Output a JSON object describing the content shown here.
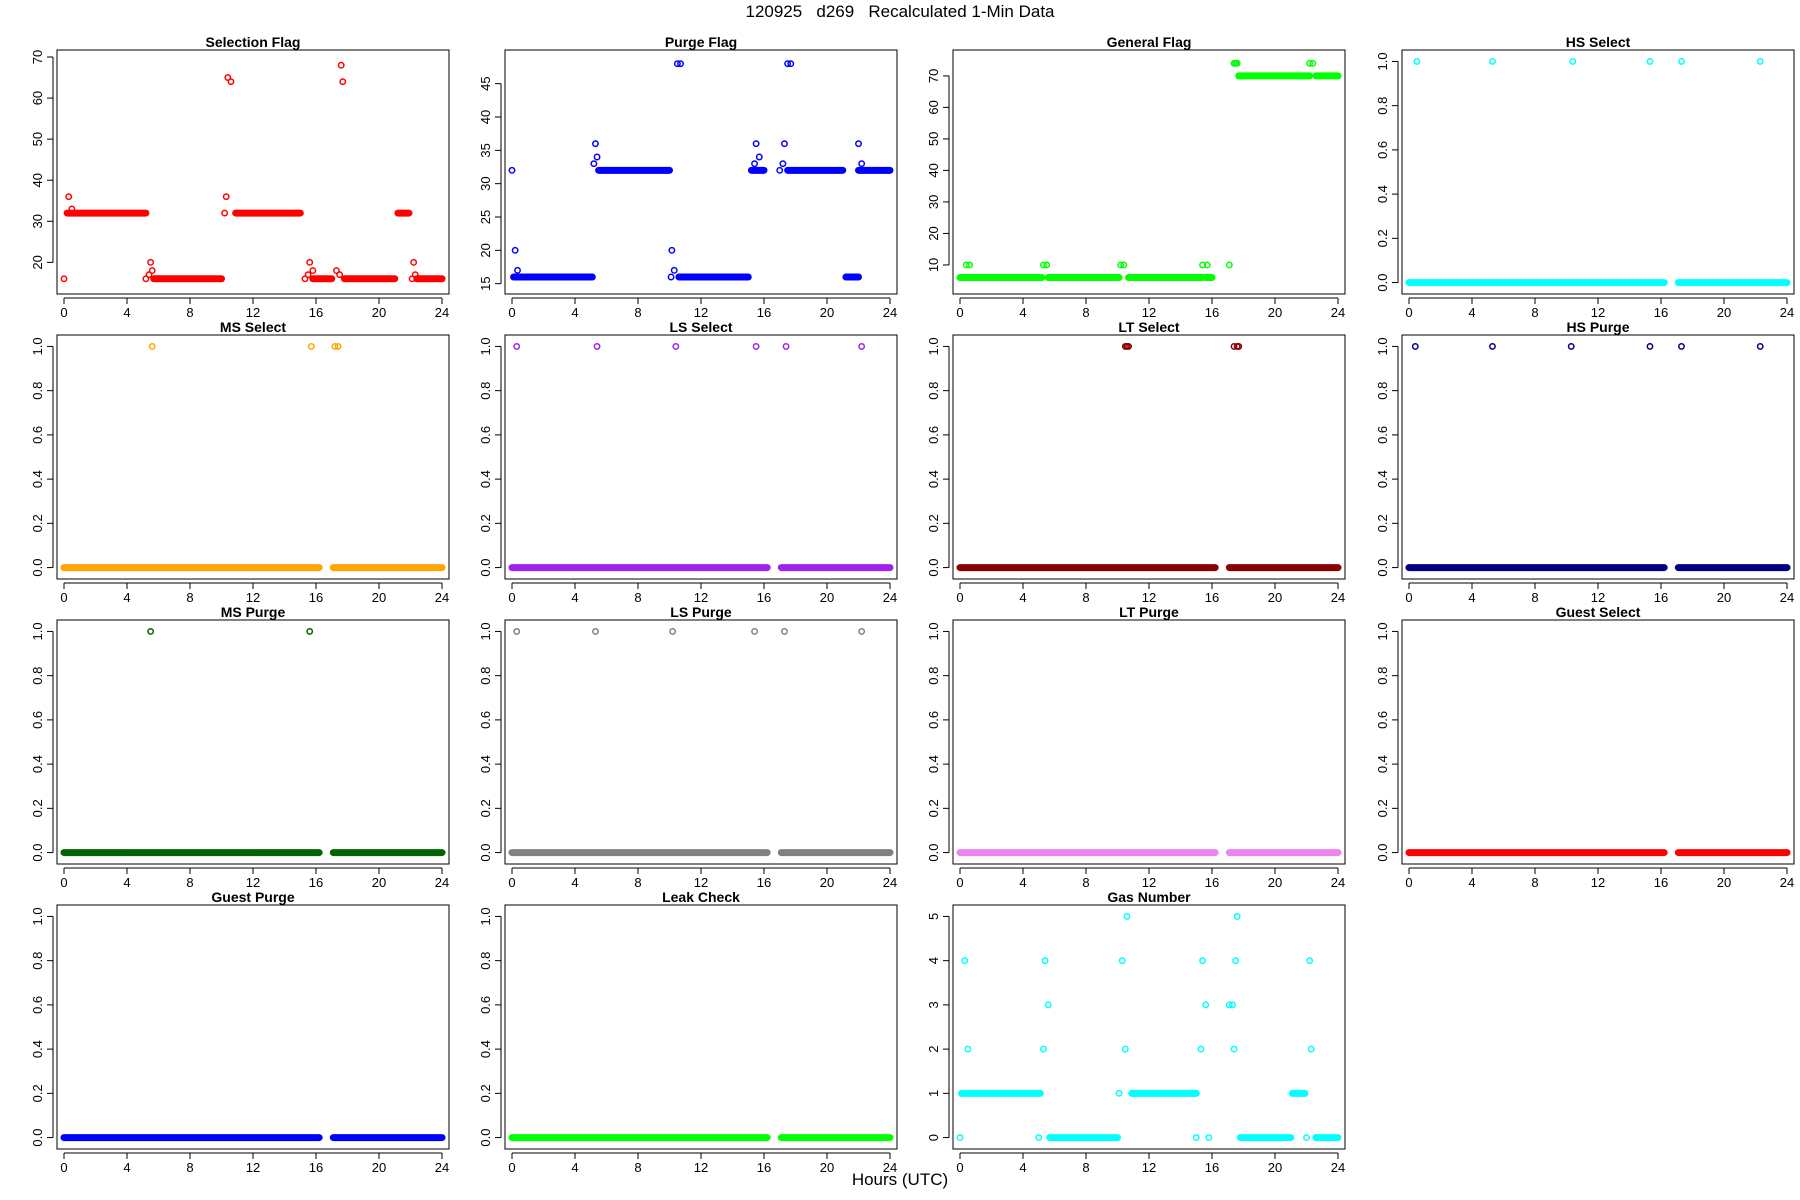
{
  "page": {
    "title": "120925   d269   Recalculated 1-Min Data",
    "xlabel": "Hours (UTC)"
  },
  "colors": {
    "red": "#ff0000",
    "blue": "#0000ff",
    "green": "#00ff00",
    "cyan": "#00ffff",
    "orange": "#ffa500",
    "purple": "#a020f0",
    "darkred": "#8b0000",
    "navy": "#000080",
    "darkgreen": "#006400",
    "gray": "#808080",
    "violet": "#ee82ee"
  },
  "chart_data": [
    {
      "type": "scatter",
      "title": "Selection Flag",
      "color": "#ff0000",
      "xlim": [
        0,
        24
      ],
      "xticks": [
        0,
        4,
        8,
        12,
        16,
        20,
        24
      ],
      "ylim": [
        14,
        70
      ],
      "yticks": [
        20,
        30,
        40,
        50,
        60,
        70
      ],
      "runs": [
        [
          0.2,
          5.2,
          32
        ],
        [
          5.7,
          10.0,
          16
        ],
        [
          10.9,
          15.0,
          32
        ],
        [
          15.8,
          17.0,
          16
        ],
        [
          17.8,
          21.0,
          16
        ],
        [
          21.2,
          21.9,
          32
        ],
        [
          22.4,
          24.0,
          16
        ]
      ],
      "points": [
        [
          0.0,
          16
        ],
        [
          0.3,
          36
        ],
        [
          0.5,
          33
        ],
        [
          5.4,
          17
        ],
        [
          5.5,
          20
        ],
        [
          5.6,
          18
        ],
        [
          5.2,
          16
        ],
        [
          10.2,
          32
        ],
        [
          10.3,
          36
        ],
        [
          10.4,
          65
        ],
        [
          10.6,
          64
        ],
        [
          15.3,
          16
        ],
        [
          15.5,
          17
        ],
        [
          15.6,
          20
        ],
        [
          15.8,
          18
        ],
        [
          17.3,
          18
        ],
        [
          17.5,
          17
        ],
        [
          17.6,
          68
        ],
        [
          17.7,
          64
        ],
        [
          22.1,
          16
        ],
        [
          22.2,
          20
        ],
        [
          22.3,
          17
        ]
      ]
    },
    {
      "type": "scatter",
      "title": "Purge Flag",
      "color": "#0000ff",
      "xlim": [
        0,
        24
      ],
      "xticks": [
        0,
        4,
        8,
        12,
        16,
        20,
        24
      ],
      "ylim": [
        14.5,
        49
      ],
      "yticks": [
        15,
        20,
        25,
        30,
        35,
        40,
        45
      ],
      "runs": [
        [
          0.1,
          5.1,
          16
        ],
        [
          5.5,
          10.0,
          32
        ],
        [
          10.6,
          15.0,
          16
        ],
        [
          15.2,
          16.0,
          32
        ],
        [
          17.5,
          21.0,
          32
        ],
        [
          21.2,
          22.0,
          16
        ],
        [
          22.0,
          24.0,
          32
        ]
      ],
      "points": [
        [
          0.0,
          32
        ],
        [
          0.2,
          20
        ],
        [
          0.35,
          17
        ],
        [
          5.2,
          33
        ],
        [
          5.3,
          36
        ],
        [
          5.4,
          34
        ],
        [
          10.1,
          16
        ],
        [
          10.15,
          20
        ],
        [
          10.3,
          17
        ],
        [
          10.5,
          48
        ],
        [
          10.7,
          48
        ],
        [
          15.4,
          33
        ],
        [
          15.5,
          36
        ],
        [
          15.7,
          34
        ],
        [
          17.0,
          32
        ],
        [
          17.2,
          33
        ],
        [
          17.3,
          36
        ],
        [
          17.5,
          48
        ],
        [
          17.7,
          48
        ],
        [
          22.0,
          36
        ],
        [
          22.2,
          33
        ]
      ]
    },
    {
      "type": "scatter",
      "title": "General Flag",
      "color": "#00ff00",
      "xlim": [
        0,
        24
      ],
      "xticks": [
        0,
        4,
        8,
        12,
        16,
        20,
        24
      ],
      "ylim": [
        3,
        76
      ],
      "yticks": [
        10,
        20,
        30,
        40,
        50,
        60,
        70
      ],
      "runs": [
        [
          0.0,
          5.2,
          6
        ],
        [
          5.6,
          10.1,
          6
        ],
        [
          10.7,
          15.4,
          6
        ],
        [
          15.6,
          16.0,
          6
        ],
        [
          17.7,
          22.2,
          70
        ],
        [
          22.6,
          24.0,
          70
        ]
      ],
      "points": [
        [
          0.4,
          10
        ],
        [
          0.6,
          10
        ],
        [
          5.3,
          10
        ],
        [
          5.5,
          10
        ],
        [
          10.2,
          10
        ],
        [
          10.4,
          10
        ],
        [
          15.4,
          10
        ],
        [
          15.7,
          10
        ],
        [
          17.1,
          10
        ],
        [
          17.4,
          74
        ],
        [
          17.5,
          74
        ],
        [
          17.6,
          74
        ],
        [
          22.2,
          74
        ],
        [
          22.4,
          74
        ]
      ]
    },
    {
      "type": "scatter",
      "title": "HS Select",
      "color": "#00ffff",
      "xlim": [
        0,
        24
      ],
      "xticks": [
        0,
        4,
        8,
        12,
        16,
        20,
        24
      ],
      "ylim": [
        -0.02,
        1.02
      ],
      "yticks": [
        0.0,
        0.2,
        0.4,
        0.6,
        0.8,
        1.0
      ],
      "runs": [
        [
          0.0,
          16.2,
          0
        ],
        [
          17.1,
          24.0,
          0
        ]
      ],
      "points": [
        [
          0.5,
          1
        ],
        [
          5.3,
          1
        ],
        [
          10.4,
          1
        ],
        [
          15.3,
          1
        ],
        [
          17.3,
          1
        ],
        [
          22.3,
          1
        ]
      ]
    },
    {
      "type": "scatter",
      "title": "MS Select",
      "color": "#ffa500",
      "xlim": [
        0,
        24
      ],
      "xticks": [
        0,
        4,
        8,
        12,
        16,
        20,
        24
      ],
      "ylim": [
        -0.02,
        1.02
      ],
      "yticks": [
        0.0,
        0.2,
        0.4,
        0.6,
        0.8,
        1.0
      ],
      "runs": [
        [
          0.0,
          16.2,
          0
        ],
        [
          17.1,
          24.0,
          0
        ]
      ],
      "points": [
        [
          5.6,
          1
        ],
        [
          15.7,
          1
        ],
        [
          17.2,
          1
        ],
        [
          17.4,
          1
        ]
      ]
    },
    {
      "type": "scatter",
      "title": "LS Select",
      "color": "#a020f0",
      "xlim": [
        0,
        24
      ],
      "xticks": [
        0,
        4,
        8,
        12,
        16,
        20,
        24
      ],
      "ylim": [
        -0.02,
        1.02
      ],
      "yticks": [
        0.0,
        0.2,
        0.4,
        0.6,
        0.8,
        1.0
      ],
      "runs": [
        [
          0.0,
          16.2,
          0
        ],
        [
          17.1,
          24.0,
          0
        ]
      ],
      "points": [
        [
          0.3,
          1
        ],
        [
          5.4,
          1
        ],
        [
          10.4,
          1
        ],
        [
          15.5,
          1
        ],
        [
          17.4,
          1
        ],
        [
          22.2,
          1
        ]
      ]
    },
    {
      "type": "scatter",
      "title": "LT Select",
      "color": "#8b0000",
      "xlim": [
        0,
        24
      ],
      "xticks": [
        0,
        4,
        8,
        12,
        16,
        20,
        24
      ],
      "ylim": [
        -0.02,
        1.02
      ],
      "yticks": [
        0.0,
        0.2,
        0.4,
        0.6,
        0.8,
        1.0
      ],
      "runs": [
        [
          0.0,
          16.2,
          0
        ],
        [
          17.1,
          24.0,
          0
        ]
      ],
      "points": [
        [
          10.5,
          1
        ],
        [
          10.6,
          1
        ],
        [
          10.7,
          1
        ],
        [
          17.4,
          1
        ],
        [
          17.6,
          1
        ],
        [
          17.7,
          1
        ]
      ]
    },
    {
      "type": "scatter",
      "title": "HS Purge",
      "color": "#000080",
      "xlim": [
        0,
        24
      ],
      "xticks": [
        0,
        4,
        8,
        12,
        16,
        20,
        24
      ],
      "ylim": [
        -0.02,
        1.02
      ],
      "yticks": [
        0.0,
        0.2,
        0.4,
        0.6,
        0.8,
        1.0
      ],
      "runs": [
        [
          0.0,
          16.2,
          0
        ],
        [
          17.1,
          24.0,
          0
        ]
      ],
      "points": [
        [
          0.4,
          1
        ],
        [
          5.3,
          1
        ],
        [
          10.3,
          1
        ],
        [
          15.3,
          1
        ],
        [
          17.3,
          1
        ],
        [
          22.3,
          1
        ]
      ]
    },
    {
      "type": "scatter",
      "title": "MS Purge",
      "color": "#006400",
      "xlim": [
        0,
        24
      ],
      "xticks": [
        0,
        4,
        8,
        12,
        16,
        20,
        24
      ],
      "ylim": [
        -0.02,
        1.02
      ],
      "yticks": [
        0.0,
        0.2,
        0.4,
        0.6,
        0.8,
        1.0
      ],
      "runs": [
        [
          0.0,
          16.2,
          0
        ],
        [
          17.1,
          24.0,
          0
        ]
      ],
      "points": [
        [
          5.5,
          1
        ],
        [
          15.6,
          1
        ]
      ]
    },
    {
      "type": "scatter",
      "title": "LS Purge",
      "color": "#808080",
      "xlim": [
        0,
        24
      ],
      "xticks": [
        0,
        4,
        8,
        12,
        16,
        20,
        24
      ],
      "ylim": [
        -0.02,
        1.02
      ],
      "yticks": [
        0.0,
        0.2,
        0.4,
        0.6,
        0.8,
        1.0
      ],
      "runs": [
        [
          0.0,
          16.2,
          0
        ],
        [
          17.1,
          24.0,
          0
        ]
      ],
      "points": [
        [
          0.3,
          1
        ],
        [
          5.3,
          1
        ],
        [
          10.2,
          1
        ],
        [
          15.4,
          1
        ],
        [
          17.3,
          1
        ],
        [
          22.2,
          1
        ]
      ]
    },
    {
      "type": "scatter",
      "title": "LT Purge",
      "color": "#ee82ee",
      "xlim": [
        0,
        24
      ],
      "xticks": [
        0,
        4,
        8,
        12,
        16,
        20,
        24
      ],
      "ylim": [
        -0.02,
        1.02
      ],
      "yticks": [
        0.0,
        0.2,
        0.4,
        0.6,
        0.8,
        1.0
      ],
      "runs": [
        [
          0.0,
          16.2,
          0
        ],
        [
          17.1,
          24.0,
          0
        ]
      ],
      "points": []
    },
    {
      "type": "scatter",
      "title": "Guest Select",
      "color": "#ff0000",
      "xlim": [
        0,
        24
      ],
      "xticks": [
        0,
        4,
        8,
        12,
        16,
        20,
        24
      ],
      "ylim": [
        -0.02,
        1.02
      ],
      "yticks": [
        0.0,
        0.2,
        0.4,
        0.6,
        0.8,
        1.0
      ],
      "runs": [
        [
          0.0,
          16.2,
          0
        ],
        [
          17.1,
          24.0,
          0
        ]
      ],
      "points": []
    },
    {
      "type": "scatter",
      "title": "Guest Purge",
      "color": "#0000ff",
      "xlim": [
        0,
        24
      ],
      "xticks": [
        0,
        4,
        8,
        12,
        16,
        20,
        24
      ],
      "ylim": [
        -0.02,
        1.02
      ],
      "yticks": [
        0.0,
        0.2,
        0.4,
        0.6,
        0.8,
        1.0
      ],
      "runs": [
        [
          0.0,
          16.2,
          0
        ],
        [
          17.1,
          24.0,
          0
        ]
      ],
      "points": []
    },
    {
      "type": "scatter",
      "title": "Leak Check",
      "color": "#00ff00",
      "xlim": [
        0,
        24
      ],
      "xticks": [
        0,
        4,
        8,
        12,
        16,
        20,
        24
      ],
      "ylim": [
        -0.02,
        1.02
      ],
      "yticks": [
        0.0,
        0.2,
        0.4,
        0.6,
        0.8,
        1.0
      ],
      "runs": [
        [
          0.0,
          16.2,
          0
        ],
        [
          17.1,
          24.0,
          0
        ]
      ],
      "points": []
    },
    {
      "type": "scatter",
      "title": "Gas Number",
      "color": "#00ffff",
      "xlim": [
        0,
        24
      ],
      "xticks": [
        0,
        4,
        8,
        12,
        16,
        20,
        24
      ],
      "ylim": [
        -0.1,
        5.1
      ],
      "yticks": [
        0,
        1,
        2,
        3,
        4,
        5
      ],
      "runs": [
        [
          0.1,
          5.1,
          1
        ],
        [
          5.7,
          10.0,
          0
        ],
        [
          10.9,
          15.0,
          1
        ],
        [
          17.8,
          21.0,
          0
        ],
        [
          21.1,
          21.9,
          1
        ],
        [
          22.6,
          24.0,
          0
        ]
      ],
      "points": [
        [
          0.0,
          0
        ],
        [
          0.3,
          4
        ],
        [
          0.5,
          2
        ],
        [
          5.0,
          0
        ],
        [
          5.3,
          2
        ],
        [
          5.4,
          4
        ],
        [
          5.6,
          3
        ],
        [
          10.1,
          1
        ],
        [
          10.3,
          4
        ],
        [
          10.5,
          2
        ],
        [
          10.6,
          5
        ],
        [
          15.0,
          0
        ],
        [
          15.3,
          2
        ],
        [
          15.4,
          4
        ],
        [
          15.6,
          3
        ],
        [
          15.8,
          0
        ],
        [
          17.1,
          3
        ],
        [
          17.3,
          3
        ],
        [
          17.4,
          2
        ],
        [
          17.5,
          4
        ],
        [
          17.6,
          5
        ],
        [
          22.0,
          0
        ],
        [
          22.2,
          4
        ],
        [
          22.3,
          2
        ]
      ]
    }
  ]
}
